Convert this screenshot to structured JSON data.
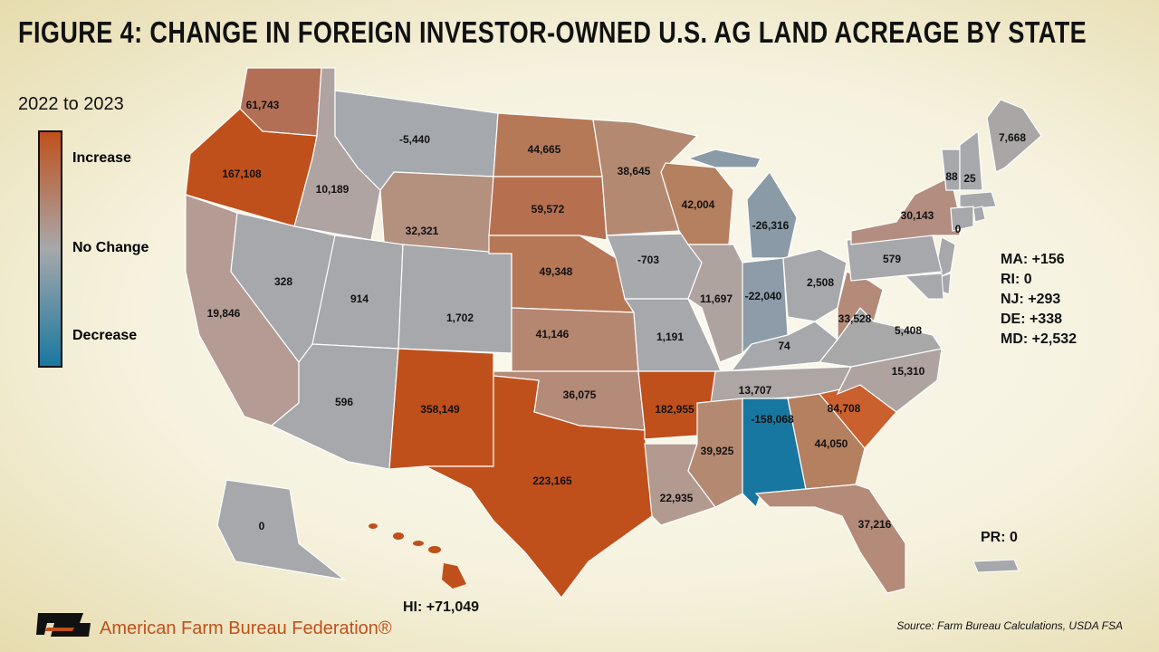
{
  "title": "FIGURE 4: CHANGE IN FOREIGN INVESTOR-OWNED U.S. AG LAND ACREAGE BY STATE",
  "subtitle": "2022 to 2023",
  "legend": {
    "high": "Increase",
    "mid": "No Change",
    "low": "Decrease",
    "colors": [
      "#c0501b",
      "#a7a8ab",
      "#1877a0"
    ]
  },
  "states": [
    {
      "label": "61,743",
      "value": 61743,
      "color": "#b36f55"
    },
    {
      "label": "167,108",
      "value": 167108,
      "color": "#c0501b"
    },
    {
      "label": "19,846",
      "value": 19846,
      "color": "#b49b93"
    },
    {
      "label": "328",
      "value": 328,
      "color": "#a7a8ab"
    },
    {
      "label": "10,189",
      "value": 10189,
      "color": "#afa4a2"
    },
    {
      "label": "-5,440",
      "value": -5440,
      "color": "#a5a9ae"
    },
    {
      "label": "32,321",
      "value": 32321,
      "color": "#b4907f"
    },
    {
      "label": "914",
      "value": 914,
      "color": "#a7a8ab"
    },
    {
      "label": "1,702",
      "value": 1702,
      "color": "#a7a8ab"
    },
    {
      "label": "596",
      "value": 596,
      "color": "#a7a8ab"
    },
    {
      "label": "358,149",
      "value": 358149,
      "color": "#c0501b"
    },
    {
      "label": "44,665",
      "value": 44665,
      "color": "#b57958"
    },
    {
      "label": "59,572",
      "value": 59572,
      "color": "#b67050"
    },
    {
      "label": "49,348",
      "value": 49348,
      "color": "#b57756"
    },
    {
      "label": "41,146",
      "value": 41146,
      "color": "#b58770"
    },
    {
      "label": "36,075",
      "value": 36075,
      "color": "#b48a78"
    },
    {
      "label": "223,165",
      "value": 223165,
      "color": "#c0501b"
    },
    {
      "label": "38,645",
      "value": 38645,
      "color": "#b48972"
    },
    {
      "label": "-703",
      "value": -703,
      "color": "#a7a9ad"
    },
    {
      "label": "1,191",
      "value": 1191,
      "color": "#a7a8ab"
    },
    {
      "label": "182,955",
      "value": 182955,
      "color": "#c0501b"
    },
    {
      "label": "22,935",
      "value": 22935,
      "color": "#b29a90"
    },
    {
      "label": "42,004",
      "value": 42004,
      "color": "#b5805f"
    },
    {
      "label": "11,697",
      "value": 11697,
      "color": "#afa3a0"
    },
    {
      "label": "-26,316",
      "value": -26316,
      "color": "#8a9aa6"
    },
    {
      "label": "-22,040",
      "value": -22040,
      "color": "#8d9ca8"
    },
    {
      "label": "2,508",
      "value": 2508,
      "color": "#a7a8ab"
    },
    {
      "label": "74",
      "value": 74,
      "color": "#a7a8ab"
    },
    {
      "label": "13,707",
      "value": 13707,
      "color": "#ada6a4"
    },
    {
      "label": "39,925",
      "value": 39925,
      "color": "#b48972"
    },
    {
      "label": "-158,068",
      "value": -158068,
      "color": "#1877a0"
    },
    {
      "label": "44,050",
      "value": 44050,
      "color": "#b5805f"
    },
    {
      "label": "37,216",
      "value": 37216,
      "color": "#b48a78"
    },
    {
      "label": "84,708",
      "value": 84708,
      "color": "#c9602d"
    },
    {
      "label": "15,310",
      "value": 15310,
      "color": "#aea39f"
    },
    {
      "label": "5,408",
      "value": 5408,
      "color": "#a9a8a9"
    },
    {
      "label": "33,528",
      "value": 33528,
      "color": "#b48a78"
    },
    {
      "label": "579",
      "value": 579,
      "color": "#a7a8ab"
    },
    {
      "label": "30,143",
      "value": 30143,
      "color": "#b38e80"
    },
    {
      "label": "7,668",
      "value": 7668,
      "color": "#aaa6a6"
    },
    {
      "label": "88",
      "value": 88,
      "color": "#a7a8ab"
    },
    {
      "label": "25",
      "value": 25,
      "color": "#a7a8ab"
    },
    {
      "label": "0",
      "value": 0,
      "color": "#a7a8ab"
    },
    {
      "label": "0",
      "value": 0,
      "color": "#a7a8ab"
    }
  ],
  "callouts": [
    "MA: +156",
    "RI: 0",
    "NJ: +293",
    "DE: +338",
    "MD: +2,532"
  ],
  "hawaii": "HI: +71,049",
  "puerto_rico": "PR: 0",
  "brand": "American Farm Bureau Federation®",
  "source": "Source: Farm Bureau Calculations, USDA FSA"
}
